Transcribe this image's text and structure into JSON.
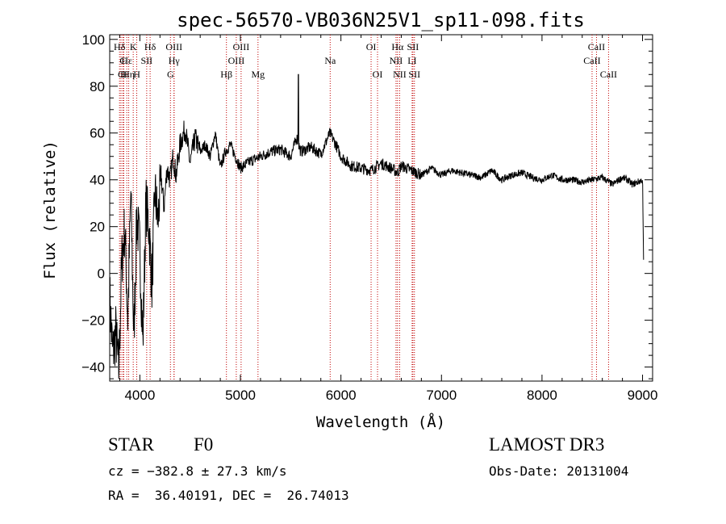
{
  "chart_data": {
    "type": "line",
    "title": "spec-56570-VB036N25V1_sp11-098.fits",
    "xlabel": "Wavelength (Å)",
    "ylabel": "Flux (relative)",
    "xlim": [
      3700,
      9100
    ],
    "ylim": [
      -46,
      102
    ],
    "xticks": [
      4000,
      5000,
      6000,
      7000,
      8000,
      9000
    ],
    "yticks": [
      -40,
      -20,
      0,
      20,
      40,
      60,
      80,
      100
    ],
    "xtick_labels": [
      "4000",
      "5000",
      "6000",
      "7000",
      "8000",
      "9000"
    ],
    "ytick_labels": [
      "−40",
      "−20",
      "0",
      "20",
      "40",
      "60",
      "80",
      "100"
    ],
    "series": [
      {
        "name": "flux",
        "x": [
          3700,
          3730,
          3760,
          3790,
          3820,
          3850,
          3880,
          3910,
          3940,
          3970,
          4000,
          4030,
          4060,
          4090,
          4120,
          4150,
          4180,
          4210,
          4240,
          4270,
          4300,
          4330,
          4360,
          4400,
          4450,
          4500,
          4550,
          4600,
          4650,
          4700,
          4750,
          4800,
          4850,
          4900,
          4950,
          5000,
          5100,
          5200,
          5300,
          5400,
          5500,
          5560,
          5600,
          5700,
          5800,
          5890,
          5950,
          6000,
          6100,
          6200,
          6300,
          6400,
          6500,
          6563,
          6600,
          6700,
          6800,
          6900,
          7000,
          7100,
          7200,
          7300,
          7400,
          7500,
          7600,
          7700,
          7800,
          7900,
          8000,
          8100,
          8200,
          8300,
          8400,
          8500,
          8600,
          8700,
          8800,
          8850,
          8900,
          8950,
          9000,
          9010
        ],
        "y": [
          -10,
          -35,
          -25,
          -42,
          5,
          20,
          -20,
          35,
          -28,
          25,
          10,
          -30,
          30,
          20,
          -5,
          35,
          22,
          42,
          28,
          45,
          40,
          50,
          42,
          55,
          62,
          47,
          58,
          52,
          55,
          50,
          60,
          45,
          52,
          55,
          50,
          45,
          48,
          50,
          52,
          53,
          50,
          58,
          52,
          54,
          51,
          60,
          55,
          50,
          46,
          45,
          44,
          47,
          45,
          43,
          46,
          44,
          42,
          45,
          42,
          44,
          43,
          42,
          41,
          44,
          40,
          42,
          43,
          41,
          40,
          42,
          40,
          40,
          39,
          40,
          41,
          38,
          41,
          40,
          38,
          39,
          40,
          6
        ]
      }
    ],
    "lines": [
      {
        "name": "Hδ",
        "x": 3798,
        "row": 1
      },
      {
        "name": "C",
        "x": 3830,
        "row": 2
      },
      {
        "name": "C",
        "x": 3812,
        "row": 3
      },
      {
        "name": "H",
        "x": 3840,
        "row": 3
      },
      {
        "name": "Hε",
        "x": 3870,
        "row": 2
      },
      {
        "name": "K",
        "x": 3934,
        "row": 1
      },
      {
        "name": "Hη",
        "x": 3889,
        "row": 3
      },
      {
        "name": "H",
        "x": 3969,
        "row": 3
      },
      {
        "name": "SII",
        "x": 4068,
        "row": 2
      },
      {
        "name": "Hδ",
        "x": 4102,
        "row": 1
      },
      {
        "name": "OIII",
        "x": 4340,
        "row": 1
      },
      {
        "name": "Hγ",
        "x": 4340,
        "row": 2
      },
      {
        "name": "G",
        "x": 4304,
        "row": 3
      },
      {
        "name": "Hβ",
        "x": 4861,
        "row": 3
      },
      {
        "name": "OIII",
        "x": 5007,
        "row": 1
      },
      {
        "name": "OIII",
        "x": 4959,
        "row": 2
      },
      {
        "name": "Mg",
        "x": 5175,
        "row": 3
      },
      {
        "name": "Na",
        "x": 5893,
        "row": 2
      },
      {
        "name": "OI",
        "x": 6300,
        "row": 1
      },
      {
        "name": "OI",
        "x": 6364,
        "row": 3
      },
      {
        "name": "Hα",
        "x": 6563,
        "row": 1
      },
      {
        "name": "SII",
        "x": 6716,
        "row": 1
      },
      {
        "name": "NII",
        "x": 6548,
        "row": 2
      },
      {
        "name": "NII",
        "x": 6584,
        "row": 3
      },
      {
        "name": "SII",
        "x": 6731,
        "row": 3
      },
      {
        "name": "LI",
        "x": 6708,
        "row": 2
      },
      {
        "name": "CaII",
        "x": 8542,
        "row": 1
      },
      {
        "name": "CaII",
        "x": 8498,
        "row": 2
      },
      {
        "name": "CaII",
        "x": 8662,
        "row": 3
      }
    ]
  },
  "info": {
    "obj_type": "STAR",
    "subclass": "F0",
    "survey": "LAMOST DR3",
    "cz": "cz = −382.8 ± 27.3 km/s",
    "obs_date": "Obs-Date: 20131004",
    "coords": "RA =  36.40191, DEC =  26.74013"
  }
}
